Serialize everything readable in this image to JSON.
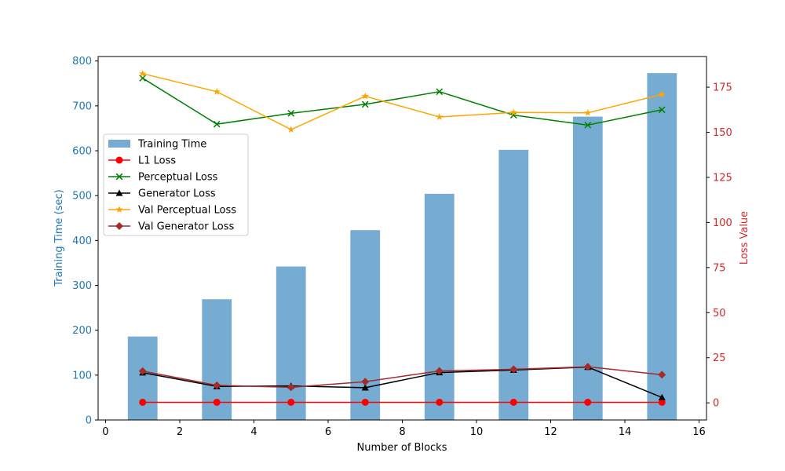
{
  "chart_data": {
    "type": "bar+line",
    "xlabel": "Number of Blocks",
    "ylabel_left": "Training Time (sec)",
    "ylabel_right": "Loss Value",
    "xlim": [
      -0.2,
      16.2
    ],
    "ylim_left": [
      0,
      810
    ],
    "ylim_right": [
      -9.5,
      192
    ],
    "x_ticks": [
      0,
      2,
      4,
      6,
      8,
      10,
      12,
      14,
      16
    ],
    "y_left_ticks": [
      0,
      100,
      200,
      300,
      400,
      500,
      600,
      700,
      800
    ],
    "y_right_ticks": [
      0,
      25,
      50,
      75,
      100,
      125,
      150,
      175
    ],
    "x": [
      1,
      3,
      5,
      7,
      9,
      11,
      13,
      15
    ],
    "bar_width": 0.8,
    "bars": {
      "name": "Training Time",
      "color": "#77acd2",
      "values": [
        186,
        269,
        342,
        423,
        504,
        602,
        676,
        773
      ]
    },
    "series": [
      {
        "name": "L1 Loss",
        "color": "#ff0000",
        "marker": "circle",
        "values": [
          0.3,
          0.3,
          0.3,
          0.3,
          0.3,
          0.3,
          0.3,
          0.3
        ]
      },
      {
        "name": "Perceptual Loss",
        "color": "#008000",
        "marker": "x",
        "values": [
          180,
          154.5,
          160.5,
          165.5,
          172.5,
          159.5,
          154,
          162.5
        ]
      },
      {
        "name": "Generator Loss",
        "color": "#000000",
        "marker": "triangle",
        "values": [
          16.7,
          9.1,
          9.4,
          8.4,
          16.8,
          18.2,
          19.8,
          3.0
        ]
      },
      {
        "name": "Val Perceptual Loss",
        "color": "#ffa500",
        "marker": "star",
        "values": [
          182.5,
          172.5,
          151.5,
          170,
          158.5,
          161,
          160.8,
          171
        ]
      },
      {
        "name": "Val Generator Loss",
        "color": "#a52a2a",
        "marker": "diamond",
        "values": [
          17.6,
          9.7,
          8.6,
          11.7,
          17.7,
          18.6,
          20.0,
          15.6
        ]
      }
    ],
    "colors": {
      "left_axis": "#1f77b4",
      "right_axis": "#d62728"
    },
    "legend_position": "center-left"
  }
}
